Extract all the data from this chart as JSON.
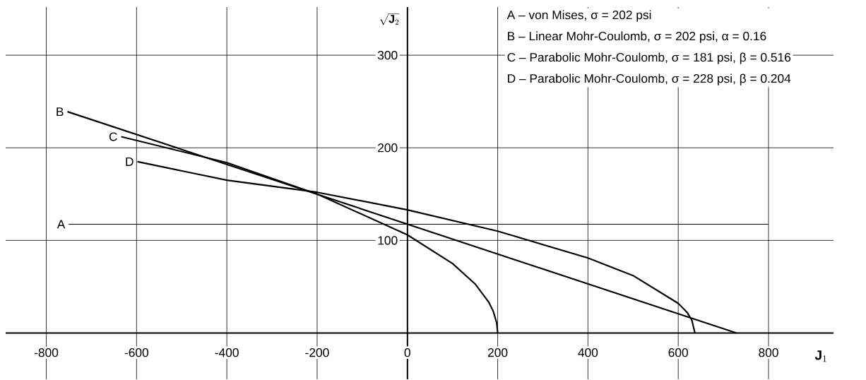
{
  "chart_data": {
    "type": "line",
    "xlabel": "\\mathbf{J}_1",
    "ylabel": "\\sqrt{\\mathbf{J}_2}",
    "xlim": [
      -890,
      944
    ],
    "ylim": [
      -50,
      352
    ],
    "xticks": [
      -800,
      -600,
      -400,
      -200,
      0,
      200,
      400,
      600,
      800
    ],
    "yticks": [
      100,
      200,
      300
    ],
    "grid": true,
    "series": [
      {
        "name": "A",
        "color": "#000000",
        "x": [
          -751,
          800
        ],
        "values": [
          117.5,
          117.5
        ]
      },
      {
        "name": "B",
        "color": "#000000",
        "x": [
          -753,
          729
        ],
        "values": [
          239,
          0
        ]
      },
      {
        "name": "C",
        "color": "#000000",
        "x": [
          -634,
          -400,
          -200,
          0,
          100,
          150,
          180,
          190,
          198,
          200
        ],
        "values": [
          212,
          184,
          150,
          106,
          75,
          53,
          33.5,
          23.7,
          10.6,
          0
        ]
      },
      {
        "name": "D",
        "color": "#000000",
        "x": [
          -598,
          -400,
          -200,
          0,
          200,
          400,
          500,
          600,
          620,
          630,
          637
        ],
        "values": [
          185,
          165,
          152,
          133,
          110,
          81,
          62,
          32,
          22,
          14,
          0
        ]
      }
    ],
    "annotations": [
      "A – von Mises, σ = 202 psi",
      "B – Linear Mohr-Coulomb, σ = 202 psi, α = 0.16",
      "C – Parabolic Mohr-Coulomb, σ = 181 psi, β = 0.516",
      "D – Parabolic Mohr-Coulomb, σ = 228 psi, β = 0.204"
    ]
  }
}
